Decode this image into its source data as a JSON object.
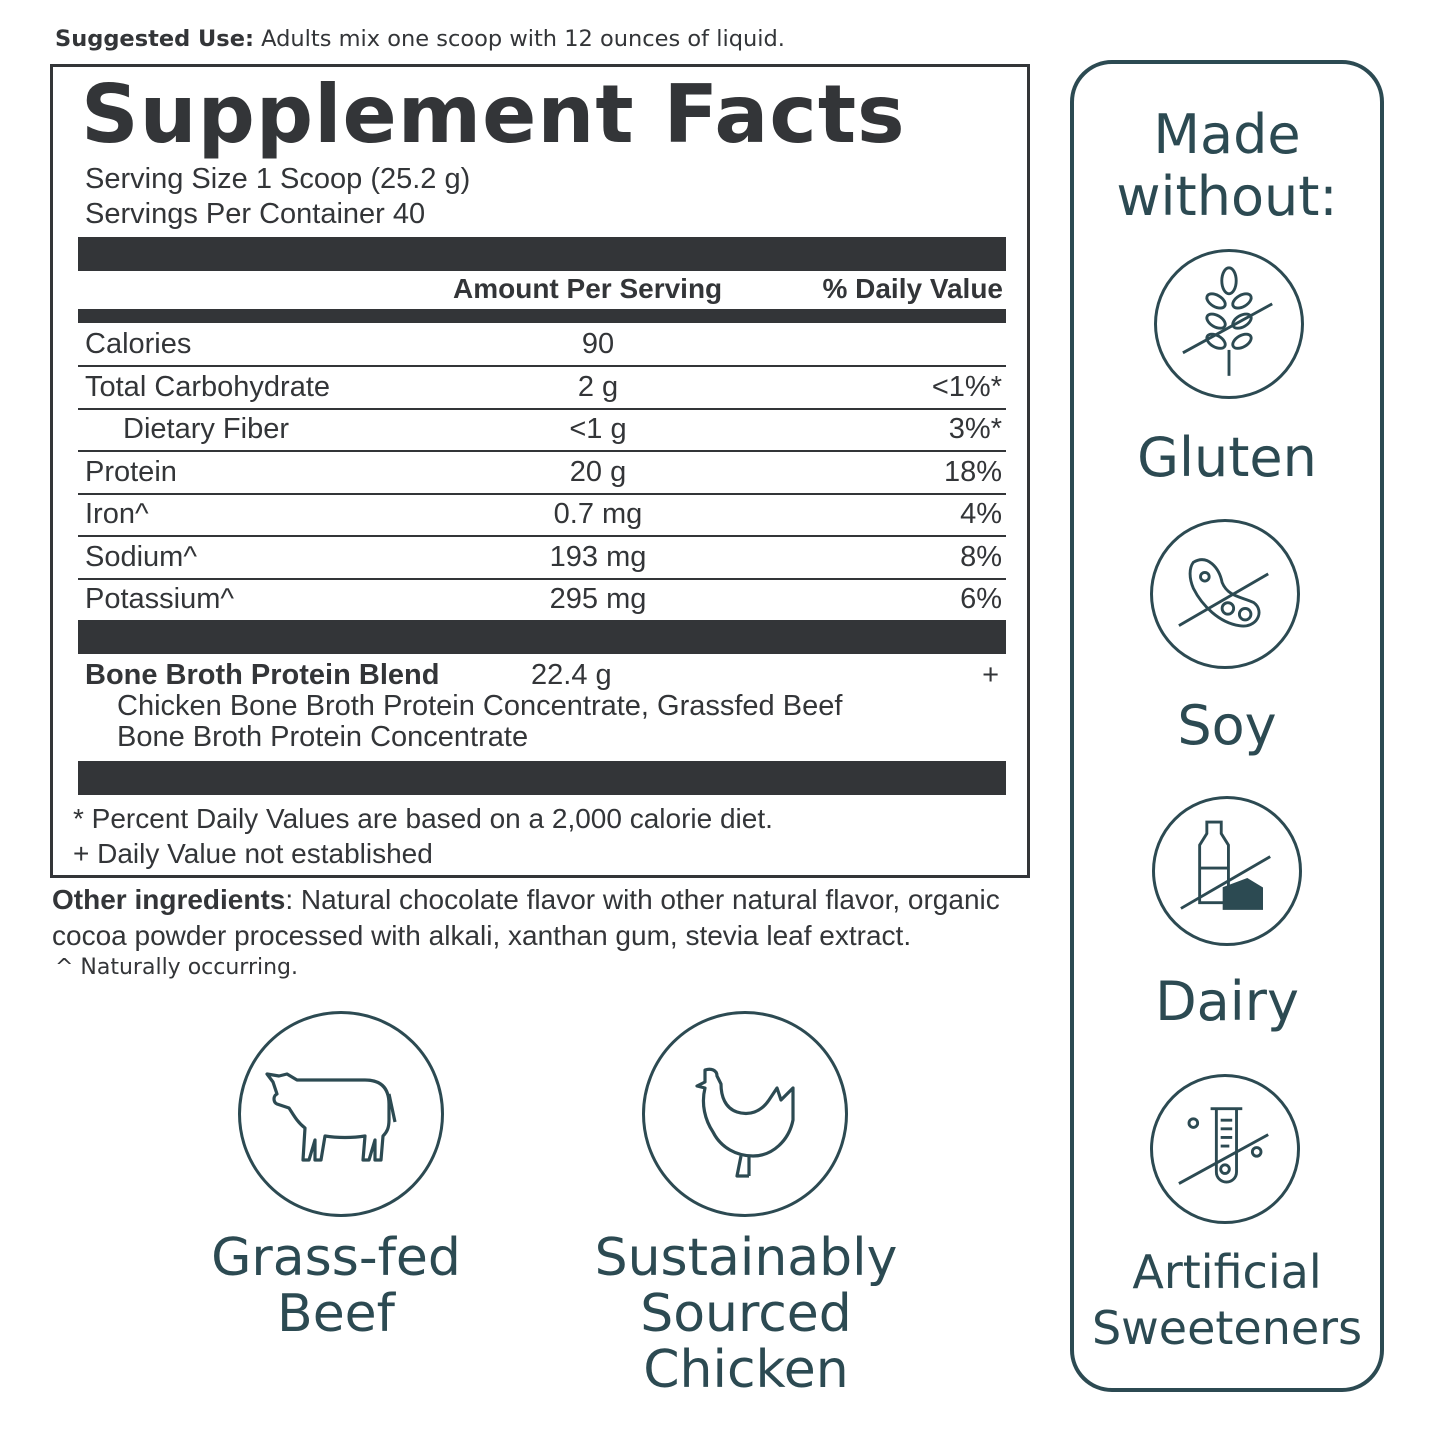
{
  "suggested_use": {
    "label": "Suggested Use:",
    "text": " Adults mix one scoop with 12 ounces of liquid."
  },
  "facts": {
    "title": "Supplement Facts",
    "serving_size": "Serving Size 1 Scoop (25.2 g)",
    "servings_per_container": "Servings Per Container 40",
    "header_amount": "Amount Per Serving",
    "header_dv": "% Daily Value",
    "rows": [
      {
        "name": "Calories",
        "amount": "90",
        "dv": ""
      },
      {
        "name": "Total Carbohydrate",
        "amount": "2 g",
        "dv": "<1%*"
      },
      {
        "name": "Dietary Fiber",
        "amount": "<1 g",
        "dv": "3%*"
      },
      {
        "name": "Protein",
        "amount": "20 g",
        "dv": "18%"
      },
      {
        "name": "Iron^",
        "amount": "0.7 mg",
        "dv": "4%"
      },
      {
        "name": "Sodium^",
        "amount": "193 mg",
        "dv": "8%"
      },
      {
        "name": "Potassium^",
        "amount": "295 mg",
        "dv": "6%"
      }
    ],
    "blend_name": "Bone Broth Protein Blend",
    "blend_amount": "22.4 g",
    "blend_dv": "+",
    "blend_line1": "Chicken Bone Broth Protein Concentrate, Grassfed Beef",
    "blend_line2": "Bone Broth Protein Concentrate",
    "footnote1": "* Percent Daily Values are based on a 2,000 calorie diet.",
    "footnote2": "+ Daily Value not established"
  },
  "other_ingredients": {
    "label": "Other ingredients",
    "text": ": Natural chocolate flavor with other natural flavor, organic cocoa powder processed with alkali, xanthan gum, stevia leaf extract."
  },
  "naturally": "^ Naturally occurring.",
  "made_without": {
    "title1": "Made",
    "title2": "without:",
    "items": [
      "Gluten",
      "Soy",
      "Dairy"
    ],
    "artificial1": "Artificial",
    "artificial2": "Sweeteners"
  },
  "badges": {
    "beef1": "Grass-fed",
    "beef2": "Beef",
    "chicken1": "Sustainably",
    "chicken2": "Sourced",
    "chicken3": "Chicken"
  },
  "colors": {
    "label_text": "#333538",
    "brand_teal": "#2c4a52"
  }
}
